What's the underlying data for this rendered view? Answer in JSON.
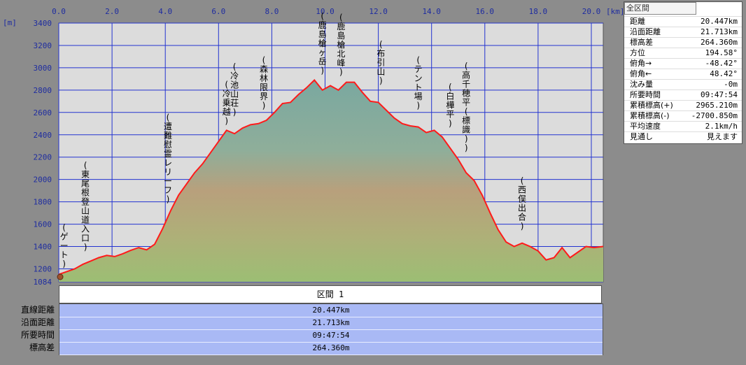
{
  "chart_data": {
    "type": "area",
    "x_unit": "[km]",
    "y_unit": "[m]",
    "xlim": [
      0,
      20.447
    ],
    "ylim": [
      1084,
      3400
    ],
    "x_ticks": [
      "0.0",
      "2.0",
      "4.0",
      "6.0",
      "8.0",
      "10.0",
      "12.0",
      "14.0",
      "16.0",
      "18.0",
      "20.0"
    ],
    "y_ticks": [
      "3400",
      "3200",
      "3000",
      "2800",
      "2600",
      "2400",
      "2200",
      "2000",
      "1800",
      "1600",
      "1400",
      "1200",
      "1084"
    ],
    "grid": true,
    "x": [
      0,
      0.3,
      0.6,
      0.9,
      1.2,
      1.5,
      1.8,
      2.1,
      2.4,
      2.7,
      3.0,
      3.3,
      3.6,
      3.9,
      4.2,
      4.5,
      4.8,
      5.1,
      5.4,
      5.7,
      6.0,
      6.3,
      6.6,
      6.9,
      7.2,
      7.5,
      7.8,
      8.1,
      8.4,
      8.7,
      9.0,
      9.3,
      9.6,
      9.9,
      10.2,
      10.5,
      10.8,
      11.1,
      11.4,
      11.7,
      12.0,
      12.3,
      12.6,
      12.9,
      13.2,
      13.5,
      13.8,
      14.1,
      14.4,
      14.7,
      15.0,
      15.3,
      15.6,
      15.9,
      16.2,
      16.5,
      16.8,
      17.1,
      17.4,
      17.7,
      18.0,
      18.3,
      18.6,
      18.9,
      19.2,
      19.5,
      19.8,
      20.1,
      20.447
    ],
    "y": [
      1150,
      1175,
      1200,
      1240,
      1270,
      1300,
      1320,
      1310,
      1335,
      1365,
      1390,
      1370,
      1420,
      1560,
      1720,
      1860,
      1960,
      2060,
      2140,
      2240,
      2340,
      2440,
      2410,
      2460,
      2490,
      2500,
      2530,
      2600,
      2680,
      2690,
      2760,
      2820,
      2890,
      2800,
      2840,
      2800,
      2870,
      2870,
      2780,
      2700,
      2690,
      2620,
      2550,
      2500,
      2480,
      2470,
      2420,
      2440,
      2380,
      2280,
      2180,
      2060,
      1990,
      1860,
      1700,
      1550,
      1440,
      1400,
      1430,
      1400,
      1360,
      1280,
      1300,
      1390,
      1300,
      1350,
      1400,
      1390,
      1400
    ],
    "labels": [
      {
        "text": "(ゲート)",
        "x": 0.2,
        "y": 1180
      },
      {
        "text": "(東尾根登山道入口)",
        "x": 1.0,
        "y": 1330
      },
      {
        "text": "(遭難慰霊レリーフ)",
        "x": 4.1,
        "y": 1760
      },
      {
        "text": "(冷乗越)",
        "x": 6.3,
        "y": 2460
      },
      {
        "text": "(冷池山荘)",
        "x": 6.6,
        "y": 2540
      },
      {
        "text": "(森林限界)",
        "x": 7.7,
        "y": 2600
      },
      {
        "text": "(鹿島槍ヶ岳)",
        "x": 9.9,
        "y": 2920
      },
      {
        "text": "(鹿島槍北峰)",
        "x": 10.6,
        "y": 2900
      },
      {
        "text": "(布引山)",
        "x": 12.1,
        "y": 2820
      },
      {
        "text": "(テント場)",
        "x": 13.5,
        "y": 2600
      },
      {
        "text": "(白樺平)",
        "x": 14.7,
        "y": 2440
      },
      {
        "text": "(高千穂平(標識))",
        "x": 15.3,
        "y": 2220
      },
      {
        "text": "(西俣出合)",
        "x": 17.4,
        "y": 1520
      }
    ]
  },
  "table": {
    "section_header": "区間 1",
    "rows": [
      {
        "label": "直線距離",
        "value": "20.447km"
      },
      {
        "label": "沿面距離",
        "value": "21.713km"
      },
      {
        "label": "所要時間",
        "value": "09:47:54"
      },
      {
        "label": "標高差",
        "value": "264.360m"
      }
    ]
  },
  "stats": {
    "title": "全区間",
    "items": [
      {
        "label": "距離",
        "value": "20.447km"
      },
      {
        "label": "沿面距離",
        "value": "21.713km"
      },
      {
        "label": "標高差",
        "value": "264.360m"
      },
      {
        "label": "方位",
        "value": "194.58°"
      },
      {
        "label": "俯角→",
        "value": "-48.42°"
      },
      {
        "label": "俯角←",
        "value": "48.42°"
      },
      {
        "label": "沈み量",
        "value": "-0m"
      },
      {
        "label": "所要時間",
        "value": "09:47:54"
      },
      {
        "label": "累積標高(+)",
        "value": "2965.210m"
      },
      {
        "label": "累積標高(-)",
        "value": "-2700.850m"
      },
      {
        "label": "平均速度",
        "value": "2.1km/h"
      },
      {
        "label": "見通し",
        "value": "見えます"
      }
    ]
  }
}
